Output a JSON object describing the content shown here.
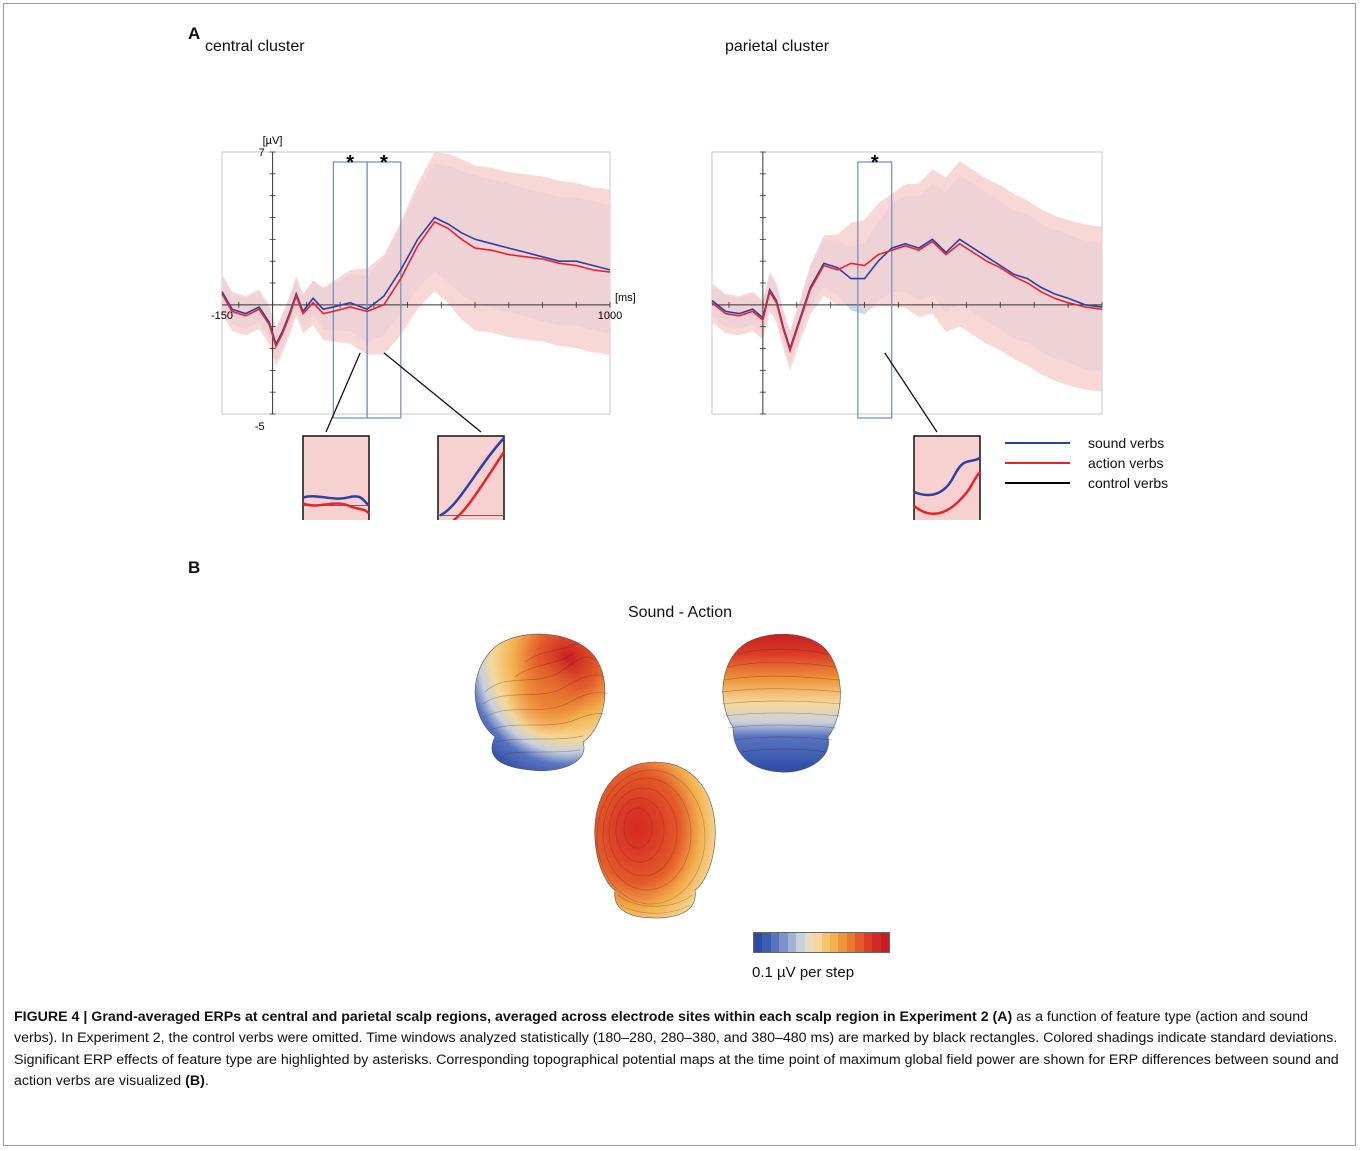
{
  "panel_a_label": "A",
  "panel_b_label": "B",
  "central_title": "central cluster",
  "parietal_title": "parietal cluster",
  "colors": {
    "sound": "#2b3fa8",
    "action": "#e8242a",
    "control": "#000000",
    "action_sd": "#f7d0d0",
    "sound_sd": "#b9d6ef",
    "window_box": "#6a8fc2"
  },
  "legend": [
    {
      "label": "sound verbs",
      "color": "#2b3fa8"
    },
    {
      "label": "action verbs",
      "color": "#e8242a"
    },
    {
      "label": "control verbs",
      "color": "#000000"
    }
  ],
  "chart_data": [
    {
      "type": "line",
      "title": "central cluster",
      "ylabel": "[µV]",
      "xlabel": "[ms]",
      "xlim": [
        -150,
        1000
      ],
      "ylim": [
        -5,
        7
      ],
      "y_tick_labels": [
        "7",
        "-5"
      ],
      "x_tick_labels": [
        "-150",
        "1000"
      ],
      "significance_marker": "*",
      "analysis_windows_ms": [
        [
          180,
          280
        ],
        [
          280,
          380
        ]
      ],
      "significant_windows": [
        0,
        1
      ],
      "series": [
        {
          "name": "sound verbs",
          "x": [
            -150,
            -120,
            -80,
            -40,
            -10,
            10,
            30,
            50,
            70,
            90,
            120,
            150,
            180,
            230,
            280,
            330,
            380,
            430,
            480,
            520,
            560,
            600,
            650,
            700,
            750,
            800,
            850,
            900,
            950,
            1000
          ],
          "y": [
            0.6,
            -0.2,
            -0.4,
            -0.1,
            -0.8,
            -1.8,
            -1.2,
            -0.4,
            0.5,
            -0.3,
            0.3,
            -0.2,
            -0.1,
            0.1,
            -0.2,
            0.4,
            1.6,
            3.0,
            4.0,
            3.7,
            3.3,
            3.0,
            2.8,
            2.6,
            2.4,
            2.2,
            2.0,
            2.0,
            1.8,
            1.6
          ]
        },
        {
          "name": "action verbs",
          "x": [
            -150,
            -120,
            -80,
            -40,
            -10,
            10,
            30,
            50,
            70,
            90,
            120,
            150,
            180,
            230,
            280,
            330,
            380,
            430,
            480,
            520,
            560,
            600,
            650,
            700,
            750,
            800,
            850,
            900,
            950,
            1000
          ],
          "y": [
            0.5,
            -0.3,
            -0.5,
            -0.2,
            -0.9,
            -1.9,
            -1.3,
            -0.5,
            0.4,
            -0.4,
            0.1,
            -0.4,
            -0.3,
            -0.1,
            -0.3,
            0.0,
            1.2,
            2.7,
            3.8,
            3.5,
            3.0,
            2.6,
            2.5,
            2.3,
            2.2,
            2.1,
            1.9,
            1.8,
            1.6,
            1.5
          ]
        }
      ]
    },
    {
      "type": "line",
      "title": "parietal cluster",
      "xlim": [
        -150,
        1000
      ],
      "ylim": [
        -5,
        7
      ],
      "significance_marker": "*",
      "analysis_windows_ms": [
        [
          280,
          380
        ]
      ],
      "significant_windows": [
        0
      ],
      "series": [
        {
          "name": "sound verbs",
          "x": [
            -150,
            -110,
            -70,
            -30,
            0,
            20,
            40,
            60,
            80,
            110,
            140,
            180,
            220,
            260,
            300,
            340,
            380,
            420,
            460,
            500,
            540,
            580,
            620,
            660,
            700,
            740,
            780,
            820,
            860,
            900,
            950,
            1000
          ],
          "y": [
            0.2,
            -0.3,
            -0.4,
            -0.2,
            -0.6,
            0.7,
            0.2,
            -1.0,
            -2.0,
            -0.6,
            0.8,
            1.9,
            1.7,
            1.2,
            1.2,
            2.0,
            2.6,
            2.8,
            2.6,
            3.0,
            2.4,
            3.0,
            2.6,
            2.2,
            1.8,
            1.4,
            1.2,
            0.8,
            0.5,
            0.3,
            0.0,
            -0.1
          ]
        },
        {
          "name": "action verbs",
          "x": [
            -150,
            -110,
            -70,
            -30,
            0,
            20,
            40,
            60,
            80,
            110,
            140,
            180,
            220,
            260,
            300,
            340,
            380,
            420,
            460,
            500,
            540,
            580,
            620,
            660,
            700,
            740,
            780,
            820,
            860,
            900,
            950,
            1000
          ],
          "y": [
            0.1,
            -0.4,
            -0.5,
            -0.3,
            -0.7,
            0.6,
            0.1,
            -1.1,
            -2.1,
            -0.7,
            0.7,
            1.8,
            1.6,
            1.9,
            1.8,
            2.3,
            2.5,
            2.7,
            2.5,
            2.9,
            2.3,
            2.8,
            2.4,
            2.0,
            1.7,
            1.3,
            1.0,
            0.6,
            0.3,
            0.1,
            -0.1,
            -0.2
          ]
        }
      ]
    }
  ],
  "topo_title": "Sound - Action",
  "scale_colors": [
    "#2d4aa6",
    "#3f5cb4",
    "#5874c0",
    "#7a93cd",
    "#a2b3d6",
    "#c8d0dc",
    "#e8dcc0",
    "#f5d89a",
    "#f4c66c",
    "#f3b04c",
    "#ef9438",
    "#ea7830",
    "#e45a2a",
    "#dc3c26",
    "#d42a24",
    "#c81e22"
  ],
  "scale_label": "0.1  µV per step",
  "caption": {
    "bold": "FIGURE 4 | Grand-averaged ERPs at central and parietal scalp regions, averaged across electrode sites within each scalp region in Experiment 2 (A)",
    "text": " as a function of feature type (action and sound verbs). In Experiment 2, the control verbs were omitted. Time windows analyzed statistically (180–280, 280–380, and 380–480 ms) are marked by black rectangles. Colored shadings indicate standard deviations. Significant ERP effects of feature type are highlighted by asterisks. Corresponding topographical potential maps at the time point of maximum global field power are shown for ERP differences between sound and action verbs are visualized ",
    "ref": "(B)",
    "end": "."
  }
}
